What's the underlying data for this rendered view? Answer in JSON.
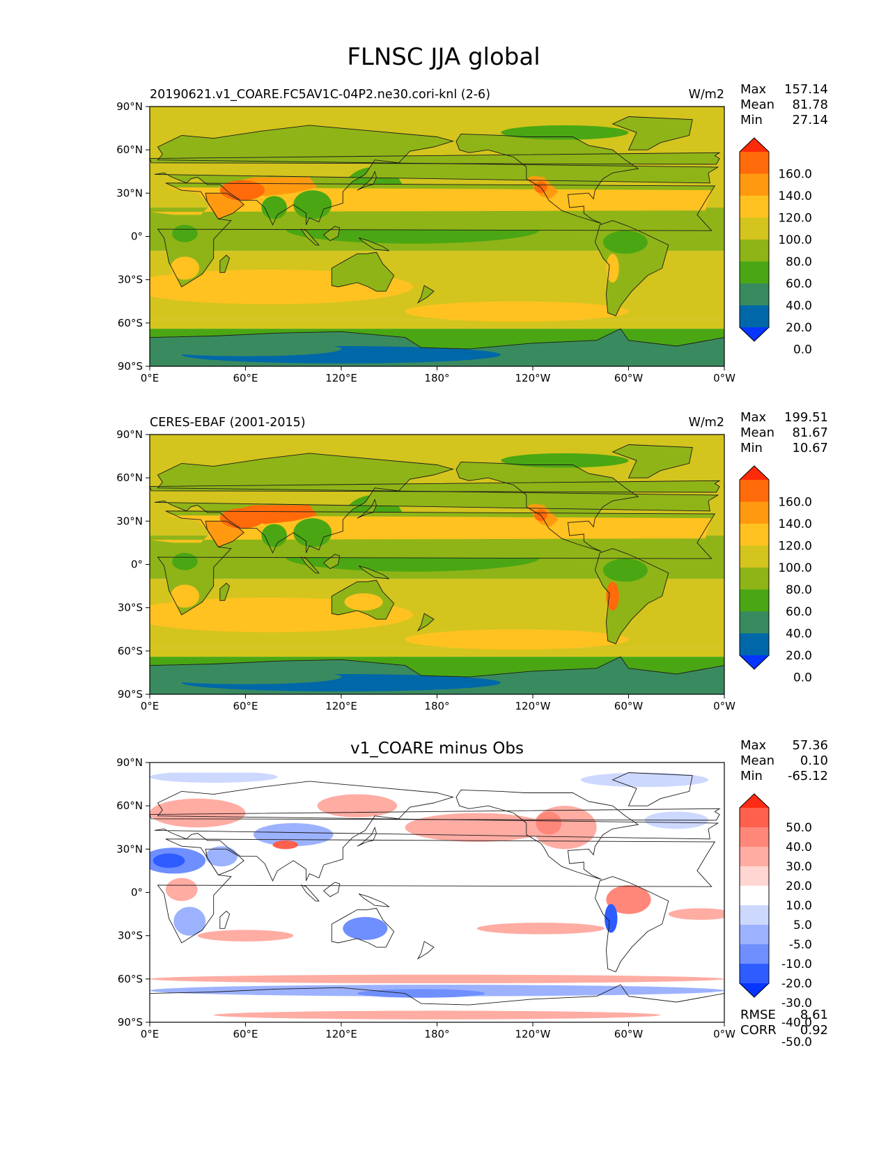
{
  "figure": {
    "title": "FLNSC JJA global"
  },
  "colors": {
    "frame": "#000000",
    "coastline": "#1a1a1a",
    "field_levels": [
      "#0535ff",
      "#0068a8",
      "#3a8a5f",
      "#4aa713",
      "#8fb418",
      "#d4c41e",
      "#ffc220",
      "#ff9a10",
      "#ff6a0a",
      "#ff2a08"
    ],
    "diff_levels": [
      "#0535ff",
      "#2e5cff",
      "#6f8fff",
      "#9db2ff",
      "#cdd8ff",
      "#ffffff",
      "#ffd6d2",
      "#ffaca3",
      "#ff877a",
      "#ff5f4d",
      "#ff2a14"
    ]
  },
  "chart_data": [
    {
      "type": "heatmap",
      "left_title": "20190621.v1_COARE.FC5AV1C-04P2.ne30.cori-knl (2-6)",
      "units": "W/m2",
      "stats": [
        {
          "label": "Max",
          "value": "157.14"
        },
        {
          "label": "Mean",
          "value": "81.78"
        },
        {
          "label": "Min",
          "value": "27.14"
        }
      ],
      "colorbar_levels": [
        "160.0",
        "140.0",
        "120.0",
        "100.0",
        "80.0",
        "60.0",
        "40.0",
        "20.0",
        "0.0"
      ],
      "xticks": [
        "0°E",
        "60°E",
        "120°E",
        "180°",
        "120°W",
        "60°W",
        "0°W"
      ],
      "yticks": [
        "90°N",
        "60°N",
        "30°N",
        "0°",
        "30°S",
        "60°S",
        "90°S"
      ],
      "xlim": [
        0,
        360
      ],
      "ylim": [
        -90,
        90
      ]
    },
    {
      "type": "heatmap",
      "left_title": "CERES-EBAF (2001-2015)",
      "units": "W/m2",
      "stats": [
        {
          "label": "Max",
          "value": "199.51"
        },
        {
          "label": "Mean",
          "value": "81.67"
        },
        {
          "label": "Min",
          "value": "10.67"
        }
      ],
      "colorbar_levels": [
        "160.0",
        "140.0",
        "120.0",
        "100.0",
        "80.0",
        "60.0",
        "40.0",
        "20.0",
        "0.0"
      ],
      "xticks": [
        "0°E",
        "60°E",
        "120°E",
        "180°",
        "120°W",
        "60°W",
        "0°W"
      ],
      "yticks": [
        "90°N",
        "60°N",
        "30°N",
        "0°",
        "30°S",
        "60°S",
        "90°S"
      ],
      "xlim": [
        0,
        360
      ],
      "ylim": [
        -90,
        90
      ]
    },
    {
      "type": "heatmap",
      "center_title": "v1_COARE minus Obs",
      "stats": [
        {
          "label": "Max",
          "value": "57.36"
        },
        {
          "label": "Mean",
          "value": "0.10"
        },
        {
          "label": "Min",
          "value": "-65.12"
        }
      ],
      "extra_stats": [
        {
          "label": "RMSE",
          "value": "8.61"
        },
        {
          "label": "CORR",
          "value": "0.92"
        }
      ],
      "colorbar_levels": [
        "50.0",
        "40.0",
        "30.0",
        "20.0",
        "10.0",
        "5.0",
        "-5.0",
        "-10.0",
        "-20.0",
        "-30.0",
        "-40.0",
        "-50.0"
      ],
      "xticks": [
        "0°E",
        "60°E",
        "120°E",
        "180°",
        "120°W",
        "60°W",
        "0°W"
      ],
      "yticks": [
        "90°N",
        "60°N",
        "30°N",
        "0°",
        "30°S",
        "60°S",
        "90°S"
      ],
      "xlim": [
        0,
        360
      ],
      "ylim": [
        -90,
        90
      ]
    }
  ]
}
